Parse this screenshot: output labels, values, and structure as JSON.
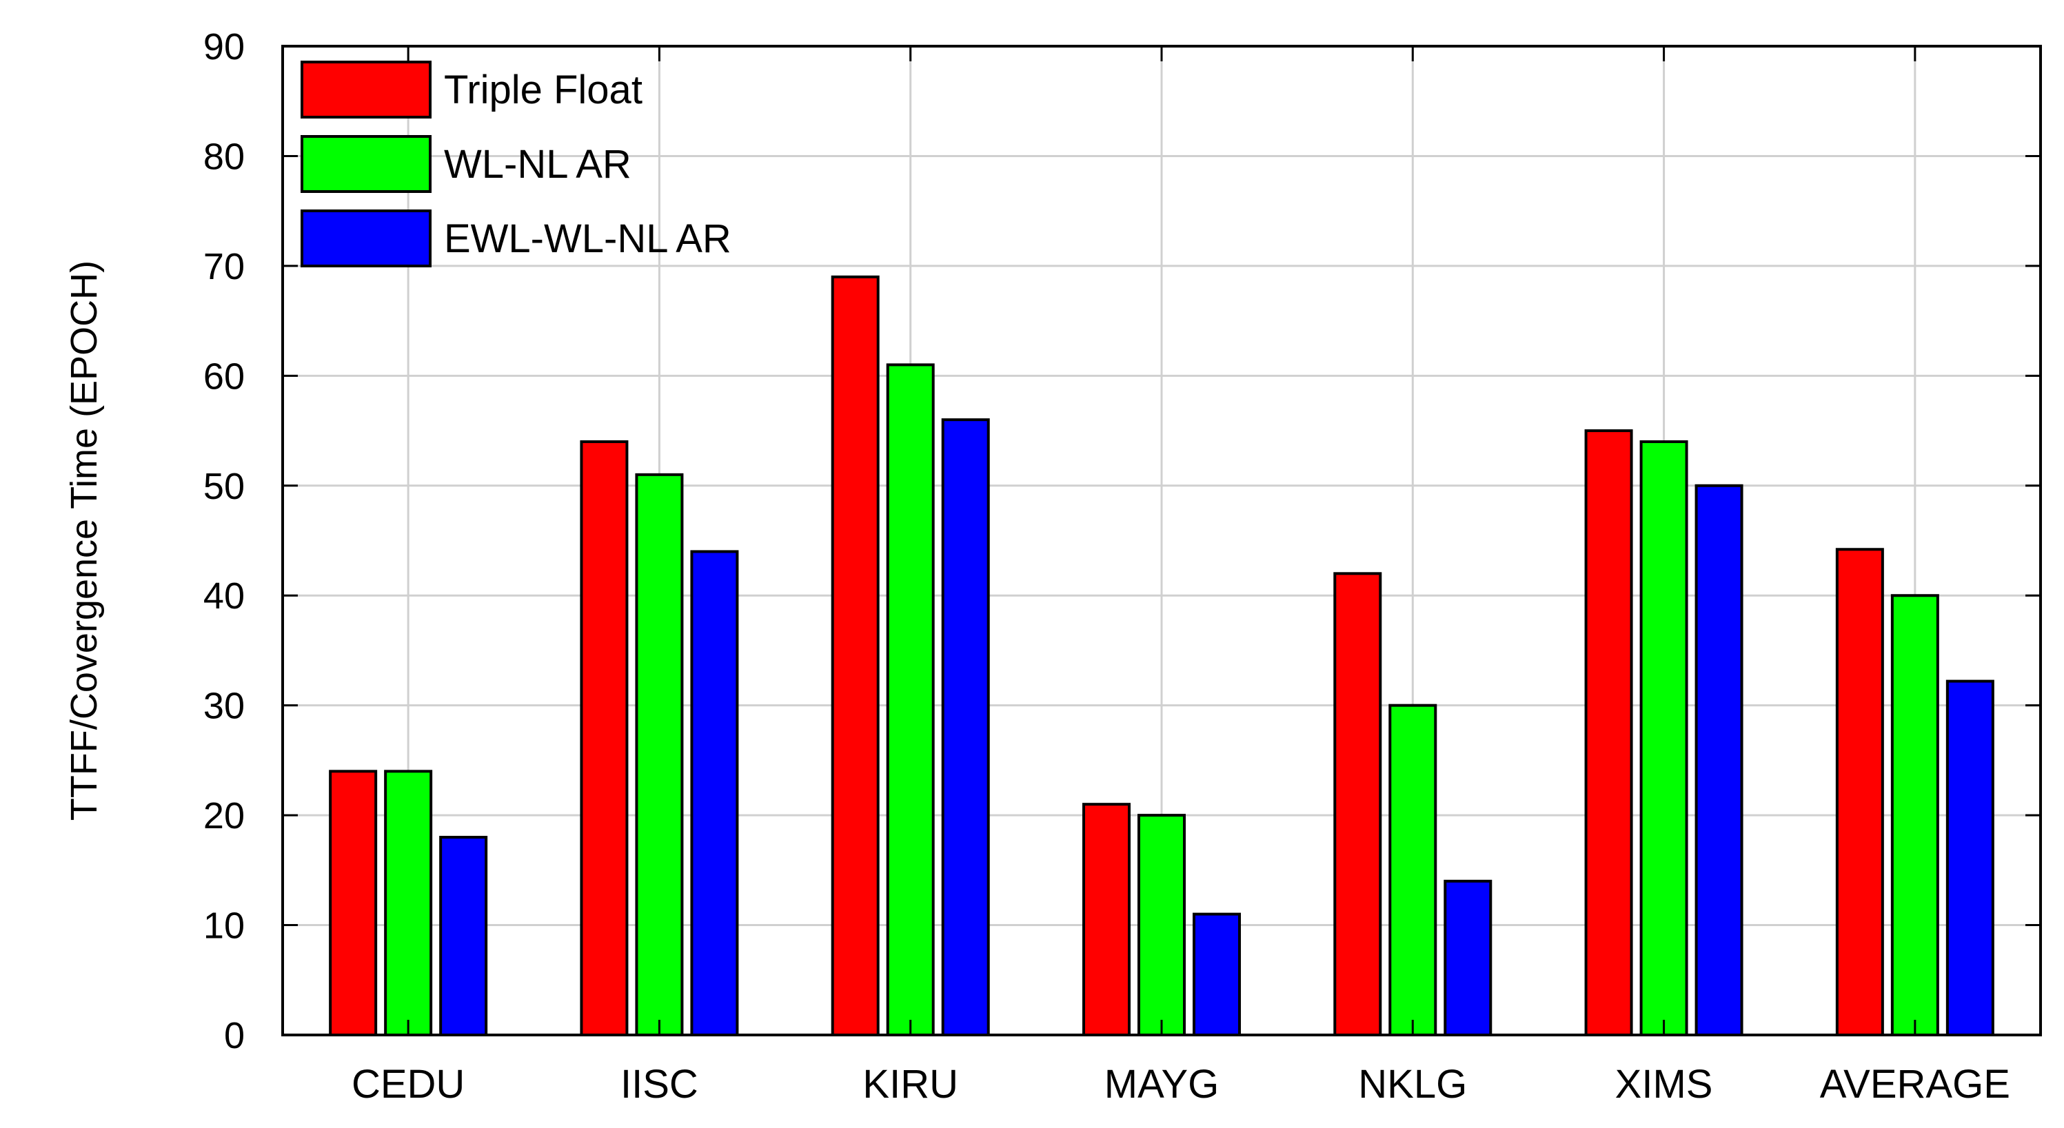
{
  "chart_data": {
    "type": "bar",
    "title": "",
    "xlabel": "",
    "ylabel": "TTFF/Covergence Time (EPOCH)",
    "ylim": [
      0,
      90
    ],
    "yticks": [
      "0",
      "10",
      "20",
      "30",
      "40",
      "50",
      "60",
      "70",
      "80",
      "90"
    ],
    "grid": true,
    "legend_position": "top-left",
    "categories": [
      "CEDU",
      "IISC",
      "KIRU",
      "MAYG",
      "NKLG",
      "XIMS",
      "AVERAGE"
    ],
    "series": [
      {
        "name": "Triple Float",
        "color": "#ff0000",
        "values": [
          24,
          54,
          69,
          21,
          42,
          55,
          44.2
        ]
      },
      {
        "name": "WL-NL AR",
        "color": "#00ff00",
        "values": [
          24,
          51,
          61,
          20,
          30,
          54,
          40
        ]
      },
      {
        "name": "EWL-WL-NL AR",
        "color": "#0000ff",
        "values": [
          18,
          44,
          56,
          11,
          14,
          50,
          32.2
        ]
      }
    ]
  }
}
